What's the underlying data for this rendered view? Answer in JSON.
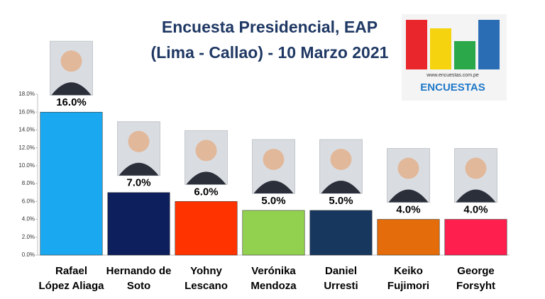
{
  "chart_data": {
    "type": "bar",
    "title": "Encuesta Presidencial, EAP",
    "subtitle": "(Lima - Callao) - 10 Marzo 2021",
    "logo": {
      "url": "www.encuestas.com.pe",
      "name": "ENCUESTAS"
    },
    "categories": [
      [
        "Rafael",
        "López Aliaga"
      ],
      [
        "Hernando de",
        "Soto"
      ],
      [
        "Yohny",
        "Lescano"
      ],
      [
        "Verónika",
        "Mendoza"
      ],
      [
        "Daniel",
        "Urresti"
      ],
      [
        "Keiko",
        "Fujimori"
      ],
      [
        "George",
        "Forsyht"
      ]
    ],
    "values": [
      16,
      7,
      6,
      5,
      5,
      4,
      4
    ],
    "value_labels": [
      "16.0%",
      "7.0%",
      "6.0%",
      "5.0%",
      "5.0%",
      "4.0%",
      "4.0%"
    ],
    "colors": [
      "#1aa9f0",
      "#0d1f5c",
      "#ff3300",
      "#92d050",
      "#17375e",
      "#e46c0a",
      "#ff1f4f"
    ],
    "ylim": [
      0,
      18
    ],
    "yticks": [
      {
        "value": 0,
        "label": "0.0%"
      },
      {
        "value": 2,
        "label": "2.0%"
      },
      {
        "value": 4,
        "label": "4.0%"
      },
      {
        "value": 6,
        "label": "6.0%"
      },
      {
        "value": 8,
        "label": "8.0%"
      },
      {
        "value": 10,
        "label": "10.0%"
      },
      {
        "value": 12,
        "label": "12.0%"
      },
      {
        "value": 14,
        "label": "14.0%"
      },
      {
        "value": 16,
        "label": "16.0%"
      },
      {
        "value": 18,
        "label": "18.0%"
      }
    ],
    "grid": false
  }
}
